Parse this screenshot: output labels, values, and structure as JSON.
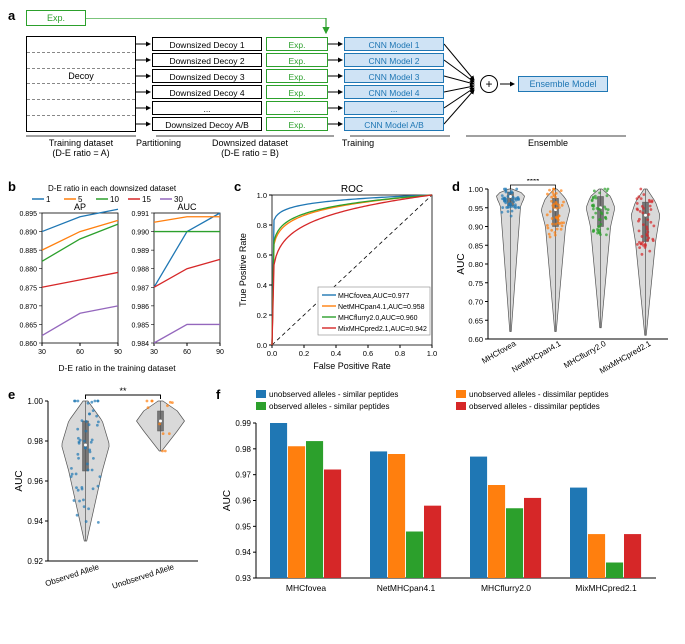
{
  "colors": {
    "blue": "#1f77b4",
    "orange": "#ff7f0e",
    "green": "#2ca02c",
    "red": "#d62728",
    "purple": "#9467bd",
    "grey": "#b0b0b0",
    "axis": "#000000",
    "bg": "#ffffff",
    "violin_fill": "#d9d9d9",
    "violin_edge": "#555555"
  },
  "global_fontsize": 9,
  "panel_a": {
    "label": "a",
    "exp_label": "Exp.",
    "training_box_lines": [
      "",
      "",
      "Decoy",
      "",
      "",
      ""
    ],
    "partition_labels": [
      "Downsized Decoy 1",
      "Downsized Decoy 2",
      "Downsized Decoy 3",
      "Downsized Decoy 4",
      "...",
      "Downsized Decoy A/B"
    ],
    "exp_col_labels": [
      "Exp.",
      "Exp.",
      "Exp.",
      "Exp.",
      "...",
      "Exp."
    ],
    "cnn_labels": [
      "CNN Model 1",
      "CNN Model 2",
      "CNN Model 3",
      "CNN Model 4",
      "...",
      "CNN Model A/B"
    ],
    "ensemble_label": "Ensemble Model",
    "section_labels": {
      "training": "Training dataset\n(D-E ratio = A)",
      "partitioning": "Partitioning",
      "downsized": "Downsized dataset\n(D-E ratio = B)",
      "training2": "Training",
      "ensemble": "Ensemble"
    },
    "plus_symbol": "+"
  },
  "panel_b": {
    "label": "b",
    "x_axis_label": "D-E ratio in the training dataset",
    "x_ticks": [
      30,
      60,
      90
    ],
    "legend_title": "D-E ratio in each downsized dataset",
    "legend_items": [
      {
        "name": "1",
        "color": "#1f77b4"
      },
      {
        "name": "5",
        "color": "#ff7f0e"
      },
      {
        "name": "10",
        "color": "#2ca02c"
      },
      {
        "name": "15",
        "color": "#d62728"
      },
      {
        "name": "30",
        "color": "#9467bd"
      }
    ],
    "left": {
      "title": "AP",
      "ylim": [
        0.86,
        0.895
      ],
      "ytick_step": 0.005,
      "series": {
        "1": [
          0.89,
          0.894,
          0.896
        ],
        "5": [
          0.885,
          0.89,
          0.893
        ],
        "10": [
          0.882,
          0.888,
          0.892
        ],
        "15": [
          0.875,
          0.877,
          0.879
        ],
        "30": [
          0.862,
          0.868,
          0.87
        ]
      }
    },
    "right": {
      "title": "AUC",
      "ylim": [
        0.984,
        0.991
      ],
      "ytick_step": 0.001,
      "series": {
        "1": [
          0.987,
          0.99,
          0.991
        ],
        "5": [
          0.9905,
          0.9908,
          0.9908
        ],
        "10": [
          0.99,
          0.99,
          0.99
        ],
        "15": [
          0.987,
          0.988,
          0.9885
        ],
        "30": [
          0.984,
          0.985,
          0.985
        ]
      }
    }
  },
  "panel_c": {
    "label": "c",
    "title": "ROC",
    "xlabel": "False Positive Rate",
    "ylabel": "True Positive Rate",
    "xlim": [
      0,
      1
    ],
    "ylim": [
      0,
      1
    ],
    "ticks": [
      0.0,
      0.2,
      0.4,
      0.6,
      0.8,
      1.0
    ],
    "series": [
      {
        "name": "MHCfovea",
        "auc": "0.977",
        "color": "#1f77b4",
        "curve_k": 24
      },
      {
        "name": "NetMHCpan4.1",
        "auc": "0.958",
        "color": "#ff7f0e",
        "curve_k": 11
      },
      {
        "name": "MHCflurry2.0",
        "auc": "0.960",
        "color": "#2ca02c",
        "curve_k": 12
      },
      {
        "name": "MixMHCpred2.1",
        "auc": "0.942",
        "color": "#d62728",
        "curve_k": 7
      }
    ]
  },
  "panel_d": {
    "label": "d",
    "ylabel": "AUC",
    "ylim": [
      0.6,
      1.0
    ],
    "yticks": [
      0.6,
      0.65,
      0.7,
      0.75,
      0.8,
      0.85,
      0.9,
      0.95,
      1.0
    ],
    "sig": "****",
    "categories": [
      {
        "name": "MHCfovea",
        "color": "#1f77b4",
        "median": 0.98,
        "q1": 0.955,
        "q3": 0.992,
        "low": 0.62,
        "high": 1.0,
        "jitter_n": 48
      },
      {
        "name": "NetMHCpan4.1",
        "color": "#ff7f0e",
        "median": 0.945,
        "q1": 0.9,
        "q3": 0.975,
        "low": 0.62,
        "high": 1.0,
        "jitter_n": 48
      },
      {
        "name": "MHCflurry2.0",
        "color": "#2ca02c",
        "median": 0.95,
        "q1": 0.9,
        "q3": 0.98,
        "low": 0.63,
        "high": 1.0,
        "jitter_n": 48
      },
      {
        "name": "MixMHCpred2.1",
        "color": "#d62728",
        "median": 0.93,
        "q1": 0.86,
        "q3": 0.965,
        "low": 0.61,
        "high": 1.0,
        "jitter_n": 48
      }
    ]
  },
  "panel_e": {
    "label": "e",
    "ylabel": "AUC",
    "ylim": [
      0.92,
      1.0
    ],
    "yticks": [
      0.92,
      0.94,
      0.96,
      0.98,
      1.0
    ],
    "sig": "**",
    "categories": [
      {
        "name": "Observed Allele",
        "color": "#1f77b4",
        "median": 0.978,
        "q1": 0.965,
        "q3": 0.99,
        "low": 0.93,
        "high": 1.0,
        "jitter_n": 55,
        "orient": "left"
      },
      {
        "name": "Unobserved Allele",
        "color": "#ff7f0e",
        "median": 0.99,
        "q1": 0.985,
        "q3": 0.995,
        "low": 0.975,
        "high": 1.0,
        "jitter_n": 12,
        "orient": "right"
      }
    ]
  },
  "panel_f": {
    "label": "f",
    "ylabel": "AUC",
    "ylim": [
      0.93,
      0.99
    ],
    "yticks": [
      0.93,
      0.94,
      0.95,
      0.96,
      0.97,
      0.98,
      0.99
    ],
    "legend": [
      {
        "name": "unobserved alleles - similar peptides",
        "color": "#1f77b4"
      },
      {
        "name": "unobserved alleles - dissimilar peptides",
        "color": "#ff7f0e"
      },
      {
        "name": "observed alleles - similar peptides",
        "color": "#2ca02c"
      },
      {
        "name": "observed alleles - dissimilar peptides",
        "color": "#d62728"
      }
    ],
    "categories": [
      "MHCfovea",
      "NetMHCpan4.1",
      "MHCflurry2.0",
      "MixMHCpred2.1"
    ],
    "values": {
      "MHCfovea": [
        0.99,
        0.981,
        0.983,
        0.972
      ],
      "NetMHCpan4.1": [
        0.979,
        0.978,
        0.948,
        0.958
      ],
      "MHCflurry2.0": [
        0.977,
        0.966,
        0.957,
        0.961
      ],
      "MixMHCpred2.1": [
        0.965,
        0.947,
        0.936,
        0.947
      ]
    },
    "bar_group_width": 0.72
  }
}
